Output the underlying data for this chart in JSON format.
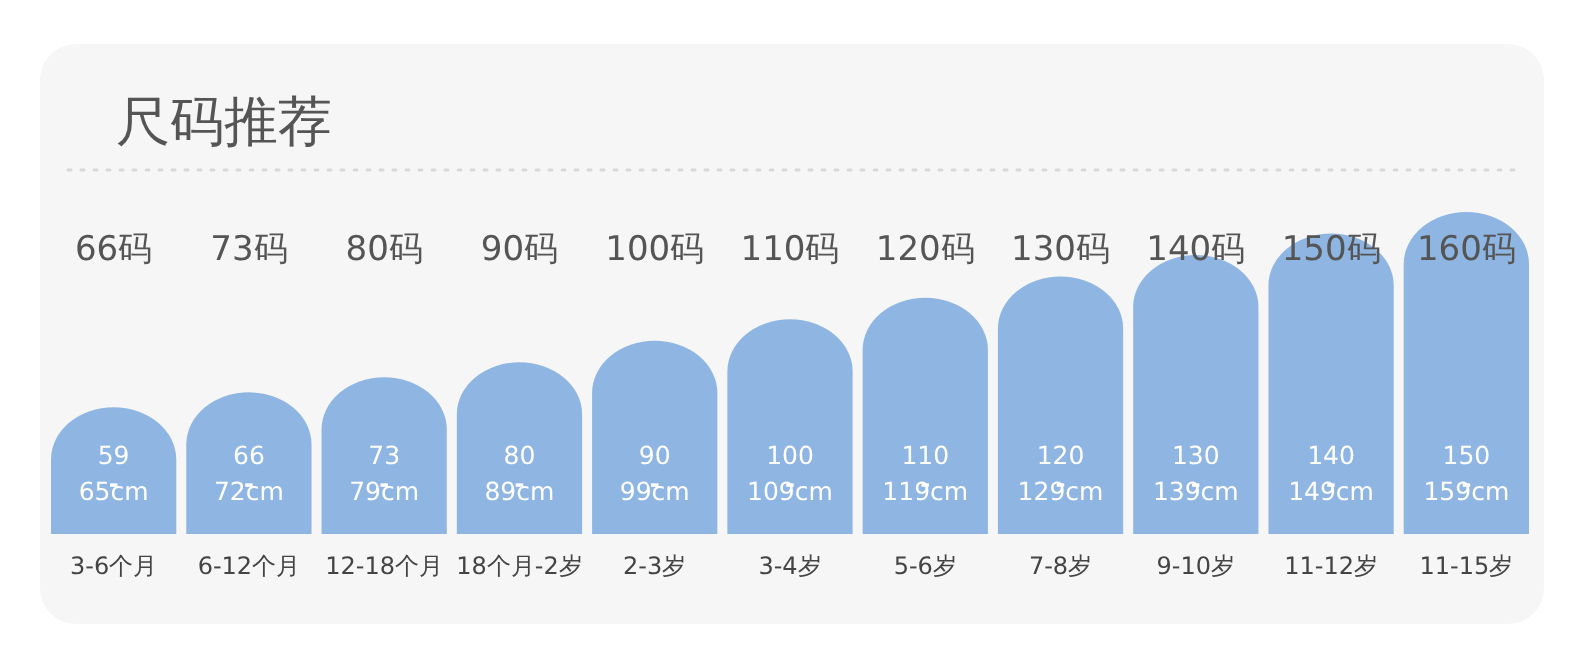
{
  "chart_data": {
    "type": "bar",
    "title": "尺码推荐",
    "color": "#8fb6e2",
    "categories": [
      "66码",
      "73码",
      "80码",
      "90码",
      "100码",
      "110码",
      "120码",
      "130码",
      "140码",
      "150码",
      "160码"
    ],
    "values": [
      59,
      66,
      73,
      80,
      90,
      100,
      110,
      120,
      130,
      140,
      150
    ],
    "value_labels": [
      "59$_{-}$65cm",
      "66$_{-}$72cm",
      "73$_{-}$79cm",
      "80$_{-}$89cm",
      "90$_{-}$99cm",
      "100$_{-}$109cm",
      "110$_{-}$119cm",
      "120$_{-}$129cm",
      "130$_{-}$139cm",
      "140$_{-}$149cm",
      "150$_{-}$159cm"
    ],
    "annotations": [
      "3-6个月",
      "6-12个月",
      "12-18个月",
      "18个月-2岁",
      "2-3岁",
      "3-4岁",
      "5-6岁",
      "7-8岁",
      "9-10岁",
      "11-12岁",
      "11-15岁"
    ]
  }
}
